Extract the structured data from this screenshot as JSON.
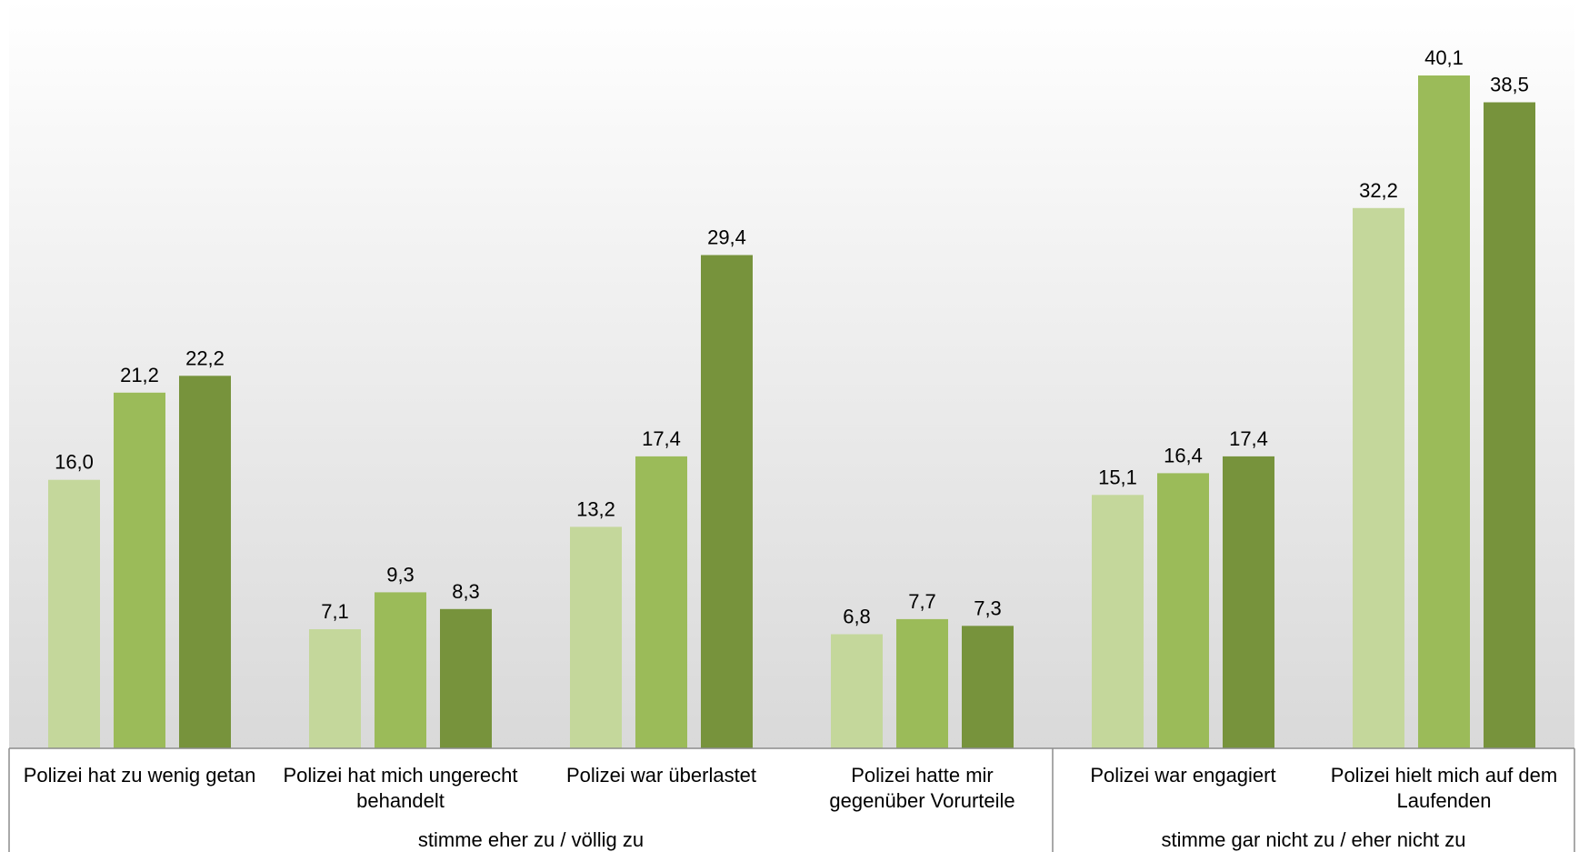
{
  "chart_data": {
    "type": "bar",
    "ylim": [
      0,
      43
    ],
    "grid": false,
    "legend": "none",
    "categories": [
      "Polizei hat zu wenig getan",
      "Polizei hat mich ungerecht behandelt",
      "Polizei war überlastet",
      "Polizei hatte mir gegenüber Vorurteile",
      "Polizei war engagiert",
      "Polizei hielt mich auf dem Laufenden"
    ],
    "category_lines": [
      [
        "Polizei hat zu wenig getan"
      ],
      [
        "Polizei hat mich ungerecht",
        "behandelt"
      ],
      [
        "Polizei war überlastet"
      ],
      [
        "Polizei hatte mir",
        "gegenüber Vorurteile"
      ],
      [
        "Polizei war engagiert"
      ],
      [
        "Polizei hielt mich auf dem",
        "Laufenden"
      ]
    ],
    "groups": [
      {
        "label": "stimme eher zu / völlig zu",
        "categories": [
          0,
          1,
          2,
          3
        ]
      },
      {
        "label": "stimme gar nicht zu / eher nicht zu",
        "categories": [
          4,
          5
        ]
      }
    ],
    "series": [
      {
        "values": [
          16.0,
          7.1,
          13.2,
          6.8,
          15.1,
          32.2
        ],
        "labels": [
          "16,0",
          "7,1",
          "13,2",
          "6,8",
          "15,1",
          "32,2"
        ],
        "color": "#c4d79b"
      },
      {
        "values": [
          21.2,
          9.3,
          17.4,
          7.7,
          16.4,
          40.1
        ],
        "labels": [
          "21,2",
          "9,3",
          "17,4",
          "7,7",
          "16,4",
          "40,1"
        ],
        "color": "#9bbb59"
      },
      {
        "values": [
          22.2,
          8.3,
          29.4,
          7.3,
          17.4,
          38.5
        ],
        "labels": [
          "22,2",
          "8,3",
          "29,4",
          "7,3",
          "17,4",
          "38,5"
        ],
        "color": "#77933c"
      }
    ]
  }
}
